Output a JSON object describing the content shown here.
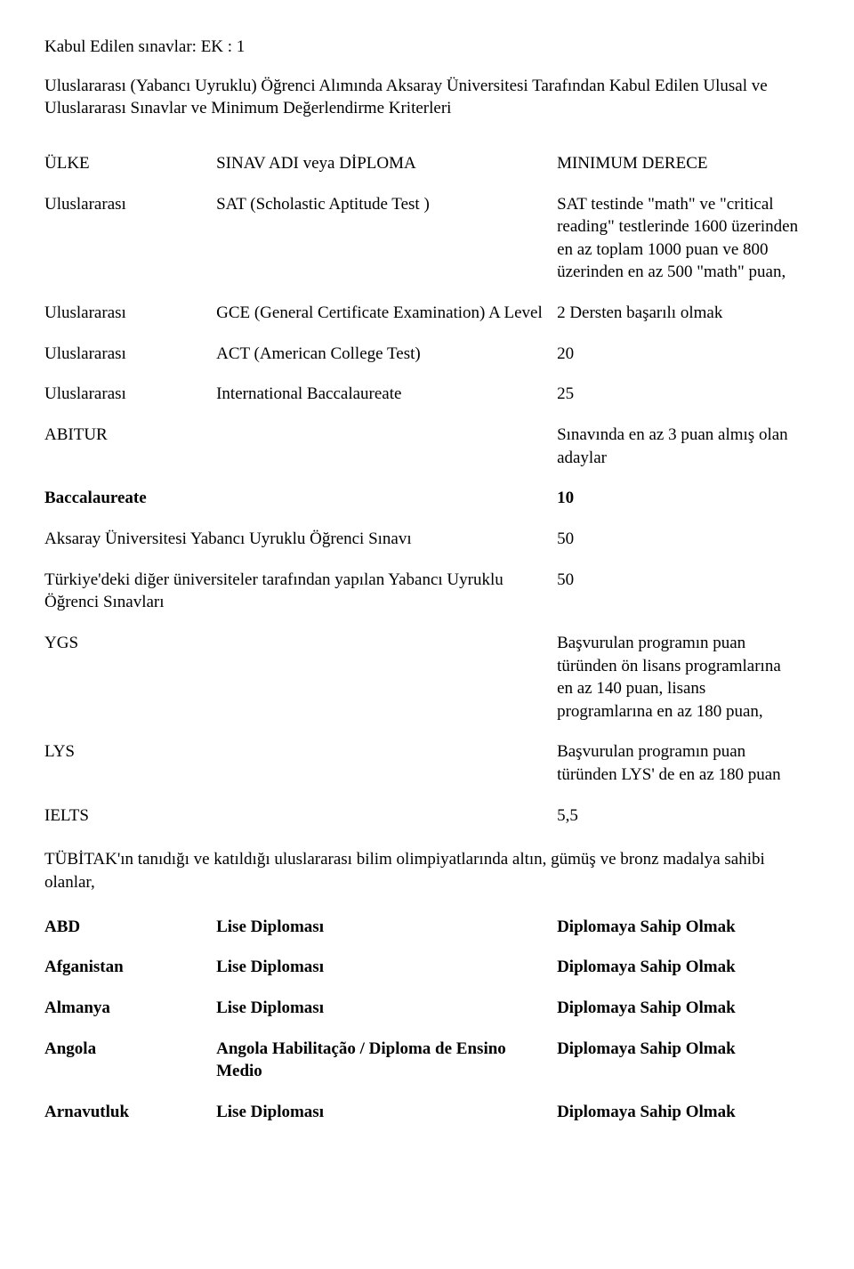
{
  "top_line": "Kabul Edilen sınavlar: EK : 1",
  "intro": "Uluslararası (Yabancı Uyruklu) Öğrenci Alımında Aksaray Üniversitesi Tarafından Kabul Edilen Ulusal ve Uluslararası Sınavlar ve Minimum Değerlendirme Kriterleri",
  "hdr": {
    "c1": "ÜLKE",
    "c2": "SINAV ADI veya DİPLOMA",
    "c3": "MINIMUM DERECE"
  },
  "r1": {
    "c1": "Uluslararası",
    "c2": "SAT (Scholastic Aptitude Test )",
    "c3": "SAT testinde \"math\" ve \"critical reading\" testlerinde 1600 üzerinden en az toplam 1000 puan ve 800 üzerinden en az 500 \"math\" puan,"
  },
  "r2": {
    "c1": "Uluslararası",
    "c2": "GCE (General Certificate Examination) A Level",
    "c3": "2 Dersten başarılı olmak"
  },
  "r3": {
    "c1": "Uluslararası",
    "c2": "ACT (American College Test)",
    "c3": "20"
  },
  "r4": {
    "c1": "Uluslararası",
    "c2": "International Baccalaureate",
    "c3": "25"
  },
  "r5": {
    "c1": "ABITUR",
    "c3": "Sınavında en az 3 puan almış olan adaylar"
  },
  "r6": {
    "c1": "Baccalaureate",
    "c3": "10"
  },
  "r7": {
    "left": "Aksaray Üniversitesi Yabancı Uyruklu Öğrenci Sınavı",
    "c3": "50"
  },
  "r8": {
    "left": "Türkiye'deki diğer üniversiteler tarafından yapılan Yabancı Uyruklu Öğrenci Sınavları",
    "c3": "50"
  },
  "r9": {
    "c1": "YGS",
    "c3": "Başvurulan programın puan türünden ön lisans programlarına en az 140 puan, lisans programlarına en az 180 puan,"
  },
  "r10": {
    "c1": "LYS",
    "c3": "Başvurulan programın puan türünden LYS' de en az 180 puan"
  },
  "r11": {
    "c1": "IELTS",
    "c3": "5,5"
  },
  "note": "TÜBİTAK'ın tanıdığı ve katıldığı uluslararası bilim olimpiyatlarında altın, gümüş ve bronz madalya sahibi olanlar,",
  "c1": {
    "a": "ABD",
    "b": "Lise Diploması",
    "c": "Diplomaya Sahip Olmak"
  },
  "c2": {
    "a": "Afganistan",
    "b": "Lise Diploması",
    "c": "Diplomaya Sahip Olmak"
  },
  "c3": {
    "a": "Almanya",
    "b": "Lise Diploması",
    "c": "Diplomaya Sahip Olmak"
  },
  "c4": {
    "a": "Angola",
    "b": "Angola Habilitação / Diploma de Ensino Medio",
    "c": "Diplomaya Sahip Olmak"
  },
  "c5": {
    "a": "Arnavutluk",
    "b": "Lise Diploması",
    "c": "Diplomaya Sahip Olmak"
  }
}
